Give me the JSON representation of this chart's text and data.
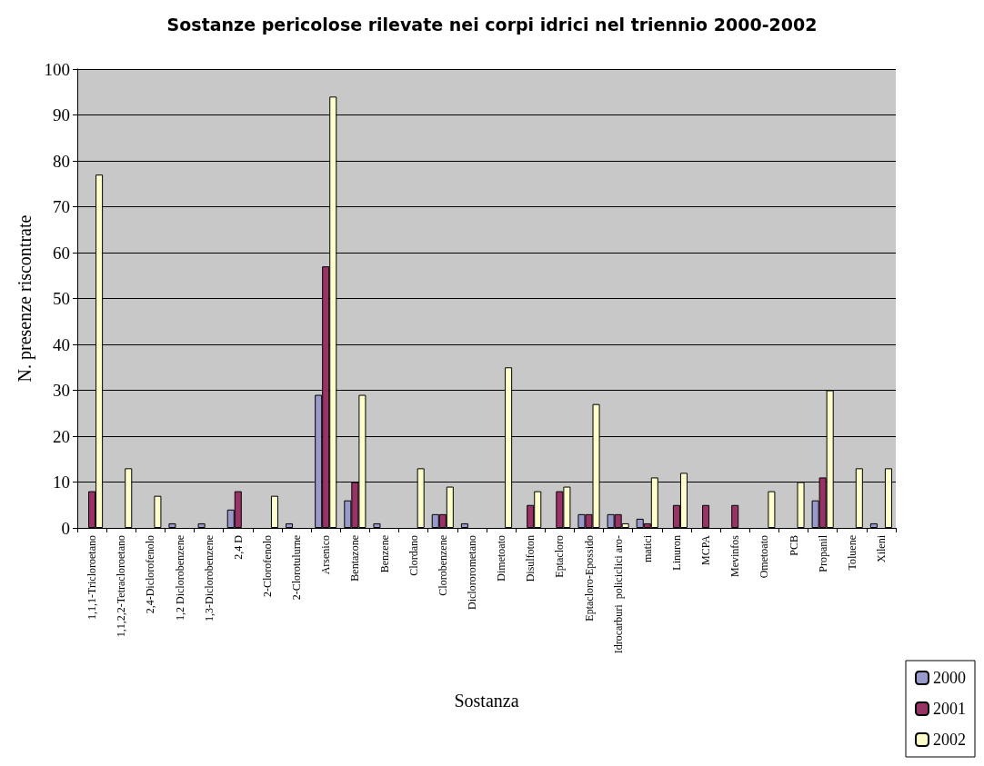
{
  "chart_data": {
    "type": "bar",
    "title": "Sostanze pericolose rilevate nei corpi idrici nel triennio 2000-2002",
    "xlabel": "Sostanza",
    "ylabel": "N. presenze riscontrate",
    "categories": [
      "1,1,1-Tricloroetano",
      "1,1,2,2-Tetracloroetano",
      "2,4-Diclorofenolo",
      "1,2 Diclorobenzene",
      "1,3-Diclorobenzene",
      "2,4 D",
      "2-Clorofenolo",
      "2-Clorotulurne",
      "Arsenico",
      "Bentazone",
      "Benzene",
      "Clordano",
      "Clorobenzene",
      "Diclororometano",
      "Dimetoato",
      "Disulfoton",
      "Eptacloro",
      "Eptacloro-Epossido",
      "Idrocarburi  policiclici aro-",
      "matici",
      "Linuron",
      "MCPA",
      "Mevinfos",
      "Ometoato",
      "PCB",
      "Propanil",
      "Toluene",
      "Xileni"
    ],
    "series": [
      {
        "name": "2000",
        "color": "#9999cc",
        "values": [
          0,
          0,
          0,
          1,
          1,
          4,
          0,
          1,
          29,
          6,
          1,
          0,
          3,
          1,
          0,
          0,
          0,
          3,
          3,
          2,
          0,
          0,
          0,
          0,
          0,
          6,
          0,
          1
        ]
      },
      {
        "name": "2001",
        "color": "#993366",
        "values": [
          8,
          0,
          0,
          0,
          0,
          8,
          0,
          0,
          57,
          10,
          0,
          0,
          3,
          0,
          0,
          5,
          8,
          3,
          3,
          1,
          5,
          5,
          5,
          0,
          0,
          11,
          0,
          0
        ]
      },
      {
        "name": "2002",
        "color": "#ffffcc",
        "values": [
          77,
          13,
          7,
          0,
          0,
          0,
          7,
          0,
          94,
          29,
          0,
          13,
          9,
          0,
          35,
          8,
          9,
          27,
          1,
          11,
          12,
          0,
          0,
          8,
          10,
          30,
          13,
          13
        ]
      }
    ],
    "ylim": [
      0,
      100
    ],
    "yticks": [
      0,
      10,
      20,
      30,
      40,
      50,
      60,
      70,
      80,
      90,
      100
    ],
    "grid": "y",
    "legend": "bottom right"
  }
}
